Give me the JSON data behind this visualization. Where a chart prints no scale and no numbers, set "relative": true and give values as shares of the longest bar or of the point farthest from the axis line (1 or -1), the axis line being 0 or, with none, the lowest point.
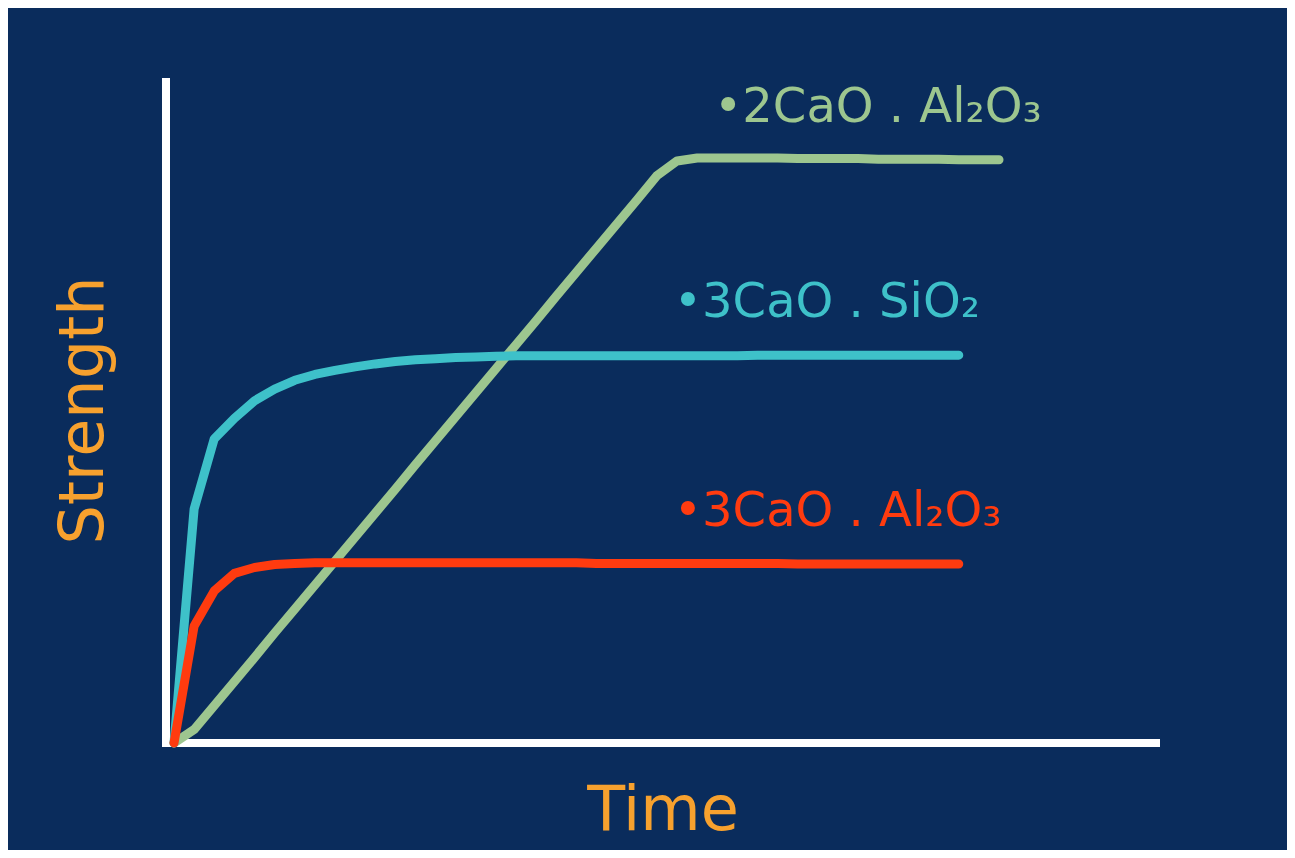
{
  "chart_data": {
    "type": "line",
    "xlabel": "Time",
    "ylabel": "Strength",
    "relative": true,
    "categories": [
      null,
      null,
      null,
      null,
      null,
      null,
      null,
      null,
      null,
      null,
      null,
      null,
      null,
      null,
      null,
      null,
      null,
      null,
      null,
      null,
      null,
      null,
      null,
      null,
      null,
      null,
      null,
      null,
      null,
      null,
      null,
      null,
      null,
      null,
      null,
      null,
      null,
      null,
      null,
      null,
      null,
      null,
      null,
      null,
      null,
      null,
      null,
      null,
      null,
      null
    ],
    "series": [
      {
        "name": "•2CaO . Al₂O₃",
        "color": "#9dc68f",
        "values": [
          0,
          0.023,
          0.064,
          0.105,
          0.146,
          0.188,
          0.229,
          0.27,
          0.311,
          0.352,
          0.393,
          0.434,
          0.476,
          0.517,
          0.558,
          0.599,
          0.64,
          0.681,
          0.722,
          0.764,
          0.805,
          0.846,
          0.887,
          0.928,
          0.97,
          0.995,
          1,
          1,
          1,
          1,
          1,
          0.999,
          0.999,
          0.999,
          0.999,
          0.998,
          0.998,
          0.998,
          0.998,
          0.997,
          0.997,
          0.997,
          null,
          null,
          null,
          null,
          null,
          null,
          null,
          null
        ]
      },
      {
        "name": "•3CaO . SiO₂",
        "color": "#3ec1c9",
        "values": [
          0,
          0.4,
          0.52,
          0.555,
          0.585,
          0.605,
          0.62,
          0.63,
          0.637,
          0.643,
          0.648,
          0.652,
          0.655,
          0.657,
          0.659,
          0.66,
          0.661,
          0.662,
          0.662,
          0.662,
          0.662,
          0.662,
          0.662,
          0.662,
          0.662,
          0.662,
          0.662,
          0.662,
          0.662,
          0.663,
          0.663,
          0.663,
          0.663,
          0.663,
          0.663,
          0.663,
          0.663,
          0.663,
          0.663,
          0.663,
          null,
          null,
          null,
          null,
          null,
          null,
          null,
          null,
          null,
          null
        ]
      },
      {
        "name": "•3CaO . Al₂O₃",
        "color": "#ff3b0f",
        "values": [
          0,
          0.2,
          0.26,
          0.29,
          0.3,
          0.305,
          0.307,
          0.308,
          0.308,
          0.308,
          0.308,
          0.308,
          0.308,
          0.308,
          0.308,
          0.308,
          0.308,
          0.308,
          0.308,
          0.308,
          0.308,
          0.307,
          0.307,
          0.307,
          0.307,
          0.307,
          0.307,
          0.307,
          0.307,
          0.307,
          0.307,
          0.306,
          0.306,
          0.306,
          0.306,
          0.306,
          0.306,
          0.306,
          0.306,
          0.306,
          null,
          null,
          null,
          null,
          null,
          null,
          null,
          null,
          null,
          null
        ]
      }
    ]
  }
}
